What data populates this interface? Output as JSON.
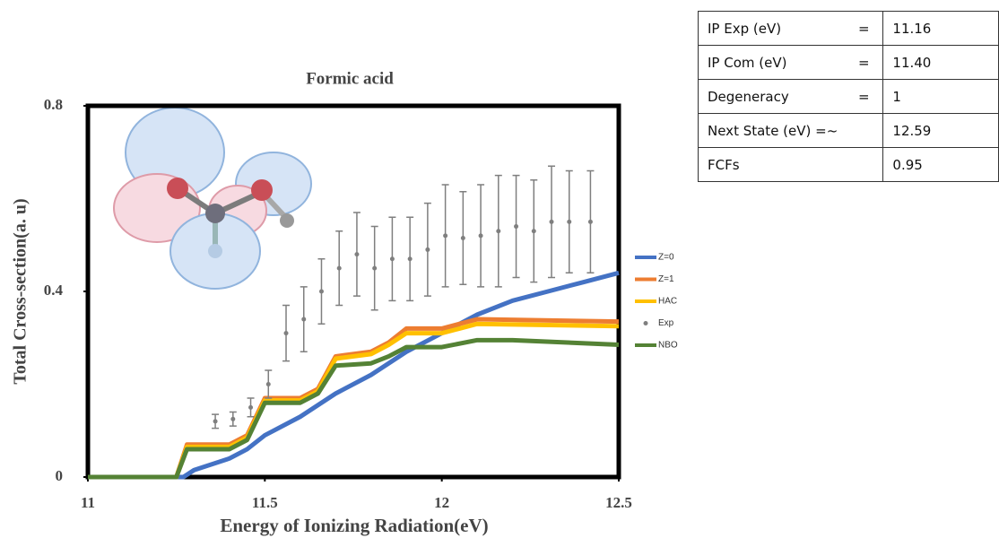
{
  "chart_data": {
    "type": "line",
    "title": "Formic acid",
    "xlabel": "Energy of Ionizing Radiation(eV)",
    "ylabel": "Total Cross-section(a. u)",
    "xlim": [
      11,
      12.5
    ],
    "ylim": [
      0,
      0.8
    ],
    "xticks": [
      11,
      11.5,
      12,
      12.5
    ],
    "yticks": [
      0,
      0.4,
      0.8
    ],
    "legend": "right",
    "series": [
      {
        "name": "Z=0",
        "color": "#4472c4",
        "style": "line",
        "x": [
          11,
          11.27,
          11.3,
          11.4,
          11.45,
          11.5,
          11.6,
          11.7,
          11.8,
          11.9,
          12.0,
          12.1,
          12.2,
          12.3,
          12.4,
          12.5
        ],
        "values": [
          0,
          0,
          0.015,
          0.04,
          0.06,
          0.09,
          0.13,
          0.18,
          0.22,
          0.27,
          0.31,
          0.35,
          0.38,
          0.4,
          0.42,
          0.44
        ]
      },
      {
        "name": "Z=1",
        "color": "#ed7d31",
        "style": "line",
        "x": [
          11,
          11.25,
          11.28,
          11.4,
          11.45,
          11.5,
          11.6,
          11.65,
          11.7,
          11.8,
          11.85,
          11.9,
          12.0,
          12.05,
          12.1,
          12.5
        ],
        "values": [
          0,
          0,
          0.07,
          0.07,
          0.09,
          0.17,
          0.17,
          0.19,
          0.26,
          0.27,
          0.29,
          0.32,
          0.32,
          0.33,
          0.34,
          0.335
        ]
      },
      {
        "name": "HAC",
        "color": "#ffc000",
        "style": "line",
        "x": [
          11,
          11.25,
          11.28,
          11.4,
          11.45,
          11.5,
          11.6,
          11.65,
          11.7,
          11.8,
          11.85,
          11.9,
          12.0,
          12.05,
          12.1,
          12.5
        ],
        "values": [
          0,
          0,
          0.065,
          0.065,
          0.085,
          0.165,
          0.165,
          0.185,
          0.255,
          0.265,
          0.285,
          0.31,
          0.31,
          0.32,
          0.33,
          0.325
        ]
      },
      {
        "name": "Exp",
        "color": "#7f7f7f",
        "style": "errorbar",
        "x": [
          11.1,
          11.15,
          11.2,
          11.36,
          11.41,
          11.46,
          11.51,
          11.56,
          11.61,
          11.66,
          11.71,
          11.76,
          11.81,
          11.86,
          11.91,
          11.96,
          12.01,
          12.06,
          12.11,
          12.16,
          12.21,
          12.26,
          12.31,
          12.36,
          12.42
        ],
        "values": [
          0,
          0,
          0,
          0.12,
          0.125,
          0.15,
          0.2,
          0.31,
          0.34,
          0.4,
          0.45,
          0.48,
          0.45,
          0.47,
          0.47,
          0.49,
          0.52,
          0.515,
          0.52,
          0.53,
          0.54,
          0.53,
          0.55,
          0.55,
          0.55
        ],
        "errors": [
          0,
          0,
          0,
          0.015,
          0.015,
          0.02,
          0.03,
          0.06,
          0.07,
          0.07,
          0.08,
          0.09,
          0.09,
          0.09,
          0.09,
          0.1,
          0.11,
          0.1,
          0.11,
          0.12,
          0.11,
          0.11,
          0.12,
          0.11,
          0.11
        ]
      },
      {
        "name": "NBO",
        "color": "#548235",
        "style": "line",
        "x": [
          11,
          11.25,
          11.28,
          11.4,
          11.45,
          11.5,
          11.6,
          11.65,
          11.7,
          11.8,
          11.85,
          11.9,
          12.0,
          12.1,
          12.2,
          12.5
        ],
        "values": [
          0,
          0,
          0.06,
          0.06,
          0.08,
          0.16,
          0.16,
          0.18,
          0.24,
          0.245,
          0.26,
          0.28,
          0.28,
          0.295,
          0.295,
          0.285
        ]
      }
    ]
  },
  "table": {
    "rows": [
      {
        "label": "IP Exp (eV)",
        "sign": "=",
        "value": "11.16"
      },
      {
        "label": "IP Com (eV)",
        "sign": "=",
        "value": "11.40"
      },
      {
        "label": "Degeneracy",
        "sign": "=",
        "value": "1"
      },
      {
        "label": "Next State (eV) =~",
        "value": "12.59"
      },
      {
        "label": "FCFs",
        "value": "0.95"
      }
    ]
  }
}
